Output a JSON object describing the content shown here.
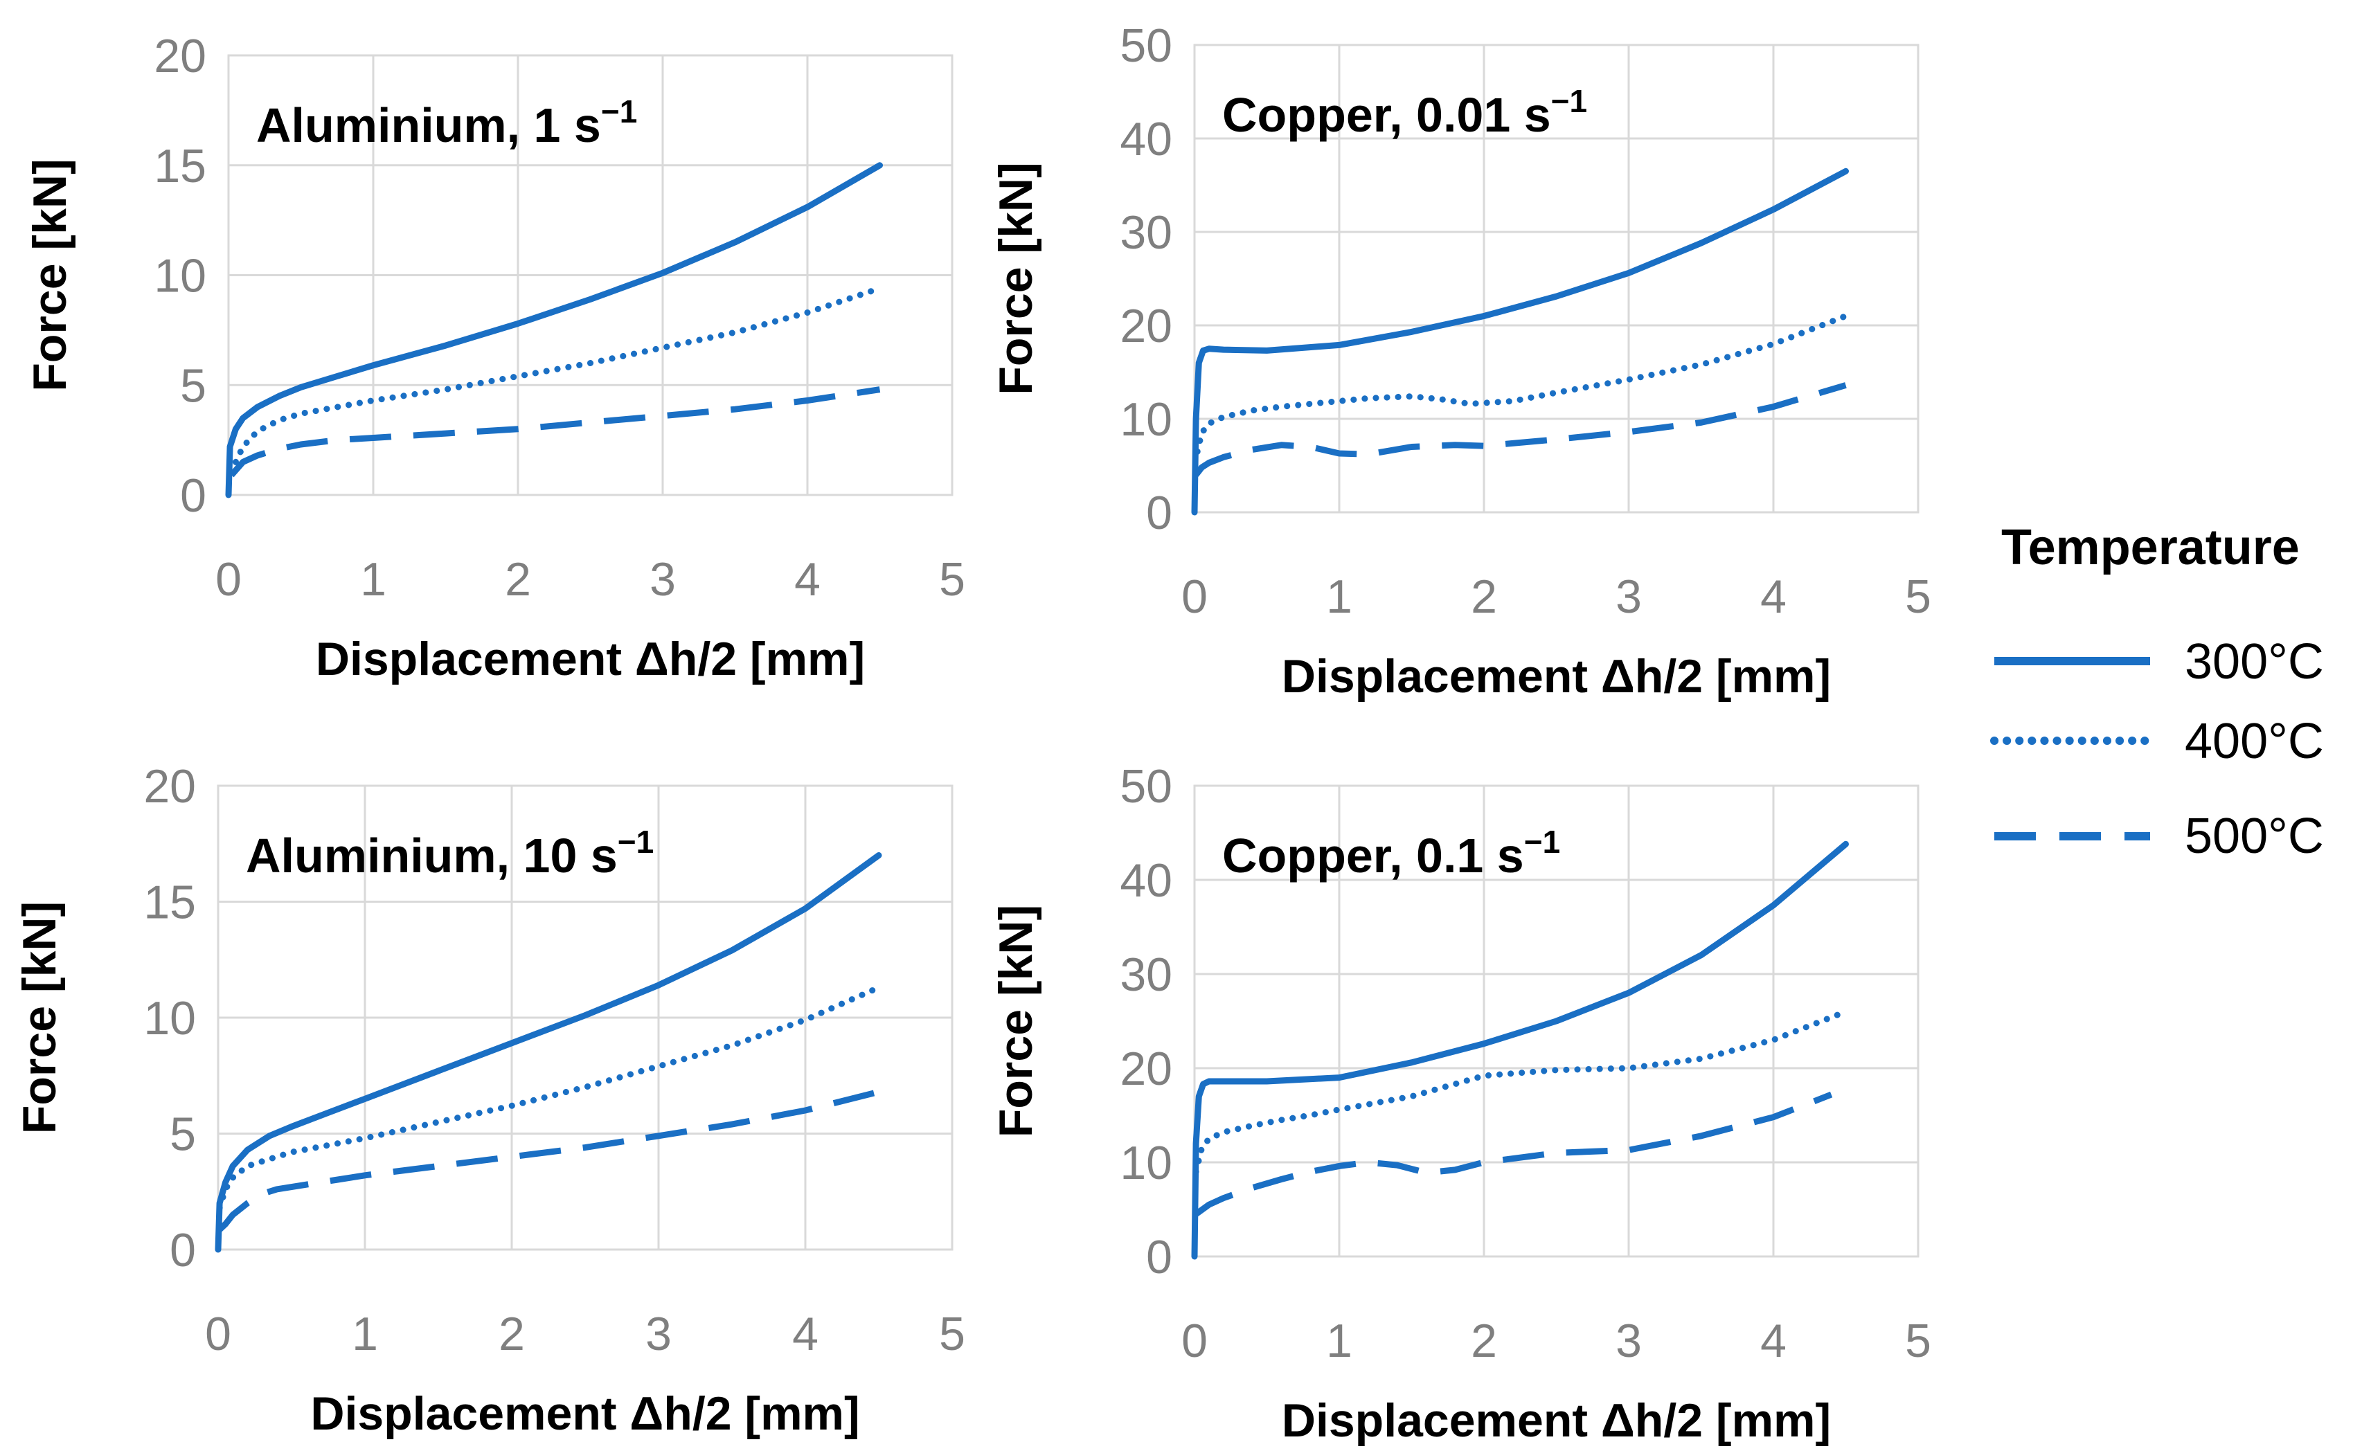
{
  "colors": {
    "series": "#1a6fc4",
    "grid": "#d9d9d9",
    "tick": "#7f7f7f"
  },
  "legend": {
    "title": "Temperature",
    "entries": [
      {
        "label": "300°C",
        "dash": "solid"
      },
      {
        "label": "400°C",
        "dash": "dotted"
      },
      {
        "label": "500°C",
        "dash": "dashed"
      }
    ]
  },
  "chart_data": [
    {
      "type": "line",
      "title_main": "Aluminium, 1 s",
      "title_sup": "−1",
      "xlabel": "Displacement Δh/2 [mm]",
      "ylabel": "Force [kN]",
      "xlim": [
        0,
        5
      ],
      "ylim": [
        0,
        20
      ],
      "xticks": [
        "0",
        "1",
        "2",
        "3",
        "4",
        "5"
      ],
      "yticks": [
        "0",
        "5",
        "10",
        "15",
        "20"
      ],
      "series": [
        {
          "name": "300°C",
          "x": [
            0,
            0.01,
            0.05,
            0.1,
            0.2,
            0.35,
            0.5,
            0.75,
            1,
            1.5,
            2,
            2.5,
            3,
            3.5,
            4,
            4.5
          ],
          "y": [
            0,
            2.2,
            3.0,
            3.5,
            4.0,
            4.5,
            4.9,
            5.4,
            5.9,
            6.8,
            7.8,
            8.9,
            10.1,
            11.5,
            13.1,
            15.0
          ]
        },
        {
          "name": "400°C",
          "x": [
            0.05,
            0.1,
            0.2,
            0.35,
            0.5,
            0.75,
            1,
            1.5,
            2,
            2.5,
            3,
            3.5,
            4,
            4.5
          ],
          "y": [
            1.5,
            2.2,
            2.9,
            3.4,
            3.7,
            4.0,
            4.3,
            4.8,
            5.4,
            6.0,
            6.7,
            7.4,
            8.3,
            9.4
          ]
        },
        {
          "name": "500°C",
          "x": [
            0.02,
            0.1,
            0.2,
            0.35,
            0.5,
            0.75,
            1,
            1.5,
            2,
            2.5,
            3,
            3.5,
            4,
            4.5
          ],
          "y": [
            0.9,
            1.5,
            1.8,
            2.1,
            2.3,
            2.5,
            2.6,
            2.8,
            3.0,
            3.3,
            3.6,
            3.9,
            4.3,
            4.8
          ]
        }
      ]
    },
    {
      "type": "line",
      "title_main": "Copper, 0.01 s",
      "title_sup": "−1",
      "xlabel": "Displacement Δh/2 [mm]",
      "ylabel": "Force [kN]",
      "xlim": [
        0,
        5
      ],
      "ylim": [
        0,
        50
      ],
      "xticks": [
        "0",
        "1",
        "2",
        "3",
        "4",
        "5"
      ],
      "yticks": [
        "0",
        "10",
        "20",
        "30",
        "40",
        "50"
      ],
      "series": [
        {
          "name": "300°C",
          "x": [
            0,
            0.01,
            0.03,
            0.06,
            0.1,
            0.2,
            0.5,
            1,
            1.5,
            2,
            2.5,
            3,
            3.5,
            4,
            4.5
          ],
          "y": [
            0,
            10,
            16,
            17.3,
            17.5,
            17.4,
            17.3,
            17.9,
            19.3,
            21.0,
            23.1,
            25.6,
            28.8,
            32.4,
            36.5
          ]
        },
        {
          "name": "400°C",
          "x": [
            0.02,
            0.05,
            0.1,
            0.2,
            0.4,
            0.6,
            0.8,
            1,
            1.2,
            1.5,
            1.7,
            1.9,
            2.2,
            2.5,
            3,
            3.5,
            4,
            4.5
          ],
          "y": [
            6.5,
            8.5,
            9.5,
            10.2,
            10.9,
            11.3,
            11.6,
            11.9,
            12.2,
            12.4,
            12.1,
            11.6,
            11.9,
            12.8,
            14.2,
            15.8,
            18.0,
            21.0
          ]
        },
        {
          "name": "500°C",
          "x": [
            0.01,
            0.05,
            0.1,
            0.2,
            0.4,
            0.6,
            0.8,
            1,
            1.2,
            1.5,
            1.8,
            2,
            2.5,
            3,
            3.5,
            4,
            4.5
          ],
          "y": [
            4.0,
            4.8,
            5.3,
            5.9,
            6.7,
            7.2,
            7.0,
            6.3,
            6.2,
            7.0,
            7.2,
            7.1,
            7.8,
            8.6,
            9.6,
            11.3,
            13.6
          ]
        }
      ]
    },
    {
      "type": "line",
      "title_main": "Aluminium, 10 s",
      "title_sup": "−1",
      "xlabel": "Displacement Δh/2 [mm]",
      "ylabel": "Force [kN]",
      "xlim": [
        0,
        5
      ],
      "ylim": [
        0,
        20
      ],
      "xticks": [
        "0",
        "1",
        "2",
        "3",
        "4",
        "5"
      ],
      "yticks": [
        "0",
        "5",
        "10",
        "15",
        "20"
      ],
      "series": [
        {
          "name": "300°C",
          "x": [
            0,
            0.01,
            0.05,
            0.1,
            0.2,
            0.35,
            0.5,
            0.75,
            1,
            1.5,
            2,
            2.5,
            3,
            3.5,
            4,
            4.5
          ],
          "y": [
            0,
            2.0,
            2.9,
            3.6,
            4.3,
            4.9,
            5.3,
            5.9,
            6.5,
            7.7,
            8.9,
            10.1,
            11.4,
            12.9,
            14.7,
            17.0
          ]
        },
        {
          "name": "400°C",
          "x": [
            0.01,
            0.05,
            0.1,
            0.2,
            0.35,
            0.5,
            0.75,
            1,
            1.5,
            2,
            2.5,
            3,
            3.5,
            4,
            4.5
          ],
          "y": [
            1.8,
            2.6,
            3.1,
            3.6,
            3.9,
            4.2,
            4.5,
            4.8,
            5.5,
            6.2,
            7.0,
            7.9,
            8.8,
            9.9,
            11.3
          ]
        },
        {
          "name": "500°C",
          "x": [
            0,
            0.05,
            0.1,
            0.2,
            0.3,
            0.4,
            0.6,
            0.8,
            1,
            1.5,
            2,
            2.5,
            3,
            3.5,
            4,
            4.5
          ],
          "y": [
            0.8,
            1.1,
            1.5,
            2.0,
            2.4,
            2.6,
            2.8,
            3.0,
            3.2,
            3.6,
            4.0,
            4.4,
            4.9,
            5.4,
            6.0,
            6.8
          ]
        }
      ]
    },
    {
      "type": "line",
      "title_main": "Copper, 0.1 s",
      "title_sup": "−1",
      "xlabel": "Displacement Δh/2 [mm]",
      "ylabel": "Force [kN]",
      "xlim": [
        0,
        5
      ],
      "ylim": [
        0,
        50
      ],
      "xticks": [
        "0",
        "1",
        "2",
        "3",
        "4",
        "5"
      ],
      "yticks": [
        "0",
        "10",
        "20",
        "30",
        "40",
        "50"
      ],
      "series": [
        {
          "name": "300°C",
          "x": [
            0,
            0.01,
            0.03,
            0.06,
            0.1,
            0.2,
            0.5,
            1,
            1.5,
            2,
            2.5,
            3,
            3.5,
            4,
            4.5
          ],
          "y": [
            0,
            12,
            17,
            18.3,
            18.6,
            18.6,
            18.6,
            19.0,
            20.6,
            22.6,
            25.0,
            28.0,
            32.0,
            37.3,
            43.8
          ]
        },
        {
          "name": "400°C",
          "x": [
            0.01,
            0.05,
            0.1,
            0.2,
            0.4,
            0.6,
            0.8,
            1,
            1.5,
            2,
            2.5,
            3,
            3.5,
            4,
            4.5
          ],
          "y": [
            9,
            11.5,
            12.5,
            13.2,
            13.9,
            14.5,
            15.0,
            15.6,
            17.0,
            19.2,
            19.8,
            20.0,
            21.0,
            23.0,
            26.0
          ]
        },
        {
          "name": "500°C",
          "x": [
            0.01,
            0.1,
            0.2,
            0.4,
            0.6,
            0.8,
            1,
            1.2,
            1.4,
            1.6,
            1.8,
            2,
            2.5,
            3,
            3.5,
            4,
            4.4
          ],
          "y": [
            4.5,
            5.5,
            6.2,
            7.3,
            8.2,
            9.0,
            9.6,
            10.0,
            9.7,
            8.9,
            9.2,
            10.0,
            11.0,
            11.3,
            12.8,
            14.8,
            17.2
          ]
        }
      ]
    }
  ]
}
